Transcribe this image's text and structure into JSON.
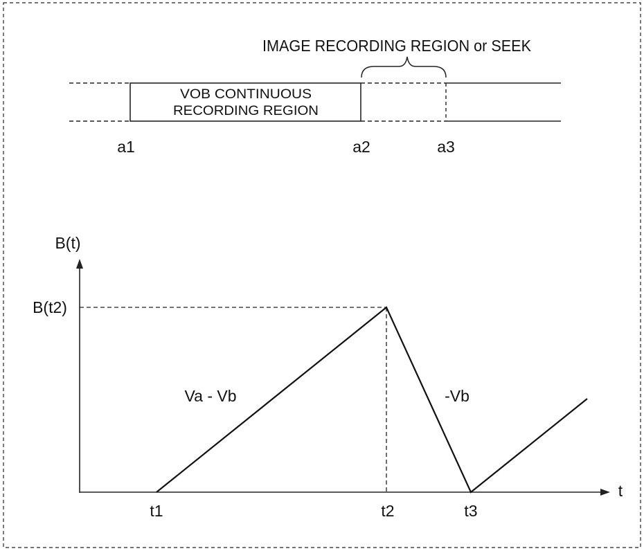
{
  "top_strip": {
    "header_label": "IMAGE RECORDING REGION or SEEK",
    "vob_label_line1": "VOB CONTINUOUS",
    "vob_label_line2": "RECORDING REGION",
    "address_labels": [
      "a1",
      "a2",
      "a3"
    ]
  },
  "chart_data": {
    "type": "line",
    "ylabel": "B(t)",
    "xlabel": "t",
    "x_ticks": [
      "t1",
      "t2",
      "t3"
    ],
    "y_ticks": [
      "B(t2)"
    ],
    "segment_labels": [
      "Va - Vb",
      "-Vb"
    ],
    "series": [
      {
        "points": [
          {
            "x": "t1",
            "y": 0
          },
          {
            "x": "t2",
            "y": "B(t2)"
          },
          {
            "x": "t3",
            "y": 0
          }
        ]
      }
    ]
  }
}
